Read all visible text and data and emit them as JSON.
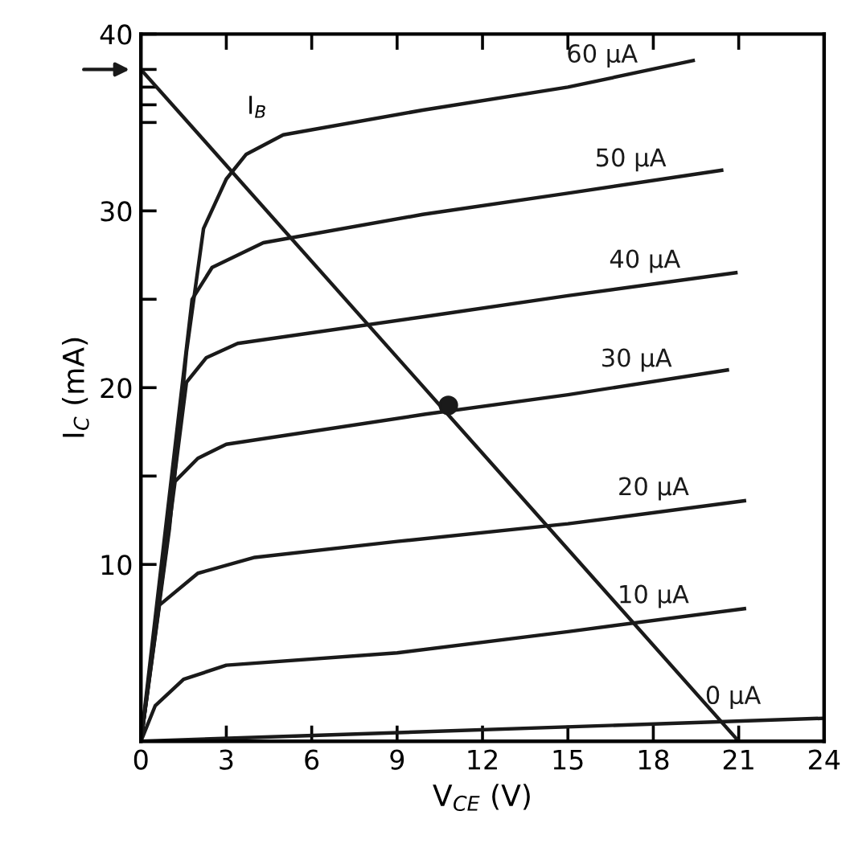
{
  "chart_data": {
    "type": "line",
    "xlabel": "V$_{CE}$ (V)",
    "ylabel": "I$_{C}$ (mA)",
    "xlim": [
      0,
      24
    ],
    "ylim": [
      0,
      40
    ],
    "xticks": [
      0,
      3,
      6,
      9,
      12,
      15,
      18,
      21,
      24
    ],
    "yticks": [
      10,
      {
        "value": 15,
        "label": null
      },
      20,
      {
        "value": 25,
        "label": null
      },
      30,
      {
        "value": 35,
        "label": null
      },
      {
        "value": 36,
        "label": null
      },
      {
        "value": 37,
        "label": null
      },
      {
        "value": 38,
        "label": null
      },
      40
    ],
    "grid": false,
    "legend": false,
    "marker": "none",
    "line_style": "solid",
    "series": [
      {
        "name": "60 µA",
        "color": "#1a1a1a",
        "x": [
          0,
          1,
          1.6,
          2.2,
          3,
          3.7,
          5,
          9.9,
          15,
          19.4
        ],
        "values": [
          0,
          12,
          22,
          29,
          31.8,
          33.2,
          34.3,
          35.7,
          37,
          38.5
        ]
      },
      {
        "name": "50 µA",
        "color": "#1a1a1a",
        "x": [
          0,
          1.8,
          2.5,
          4.3,
          9.9,
          15,
          20.4
        ],
        "values": [
          0,
          25,
          26.8,
          28.2,
          29.8,
          31,
          32.3
        ]
      },
      {
        "name": "40 µA",
        "color": "#1a1a1a",
        "x": [
          0,
          1.6,
          2.3,
          3.4,
          9.9,
          15,
          20.9
        ],
        "values": [
          0,
          20.3,
          21.7,
          22.5,
          24,
          25.2,
          26.5
        ]
      },
      {
        "name": "30 µA",
        "color": "#1a1a1a",
        "x": [
          0,
          1.2,
          2,
          3,
          10,
          15,
          20.6
        ],
        "values": [
          0,
          14.7,
          16,
          16.8,
          18.5,
          19.6,
          21
        ]
      },
      {
        "name": "20 µA",
        "color": "#1a1a1a",
        "x": [
          0,
          0.65,
          2,
          4,
          9,
          15,
          21.2
        ],
        "values": [
          0,
          7.7,
          9.5,
          10.4,
          11.3,
          12.3,
          13.6
        ]
      },
      {
        "name": "10 µA",
        "color": "#1a1a1a",
        "x": [
          0,
          0.5,
          1.5,
          3,
          9,
          15,
          21.2
        ],
        "values": [
          0,
          2,
          3.5,
          4.3,
          5,
          6.2,
          7.5
        ]
      },
      {
        "name": "0 µA",
        "color": "#1a1a1a",
        "x": [
          0,
          24
        ],
        "values": [
          0,
          1.3
        ]
      },
      {
        "type": "line",
        "color": "#1a1a1a",
        "x": [
          0,
          21
        ],
        "values": [
          38,
          0
        ]
      },
      {
        "type": "scatter",
        "color": "#1a1a1a",
        "marker": "circle",
        "x": [
          10.8
        ],
        "values": [
          19
        ]
      }
    ],
    "annotations": [
      "I$_{B}$"
    ]
  }
}
